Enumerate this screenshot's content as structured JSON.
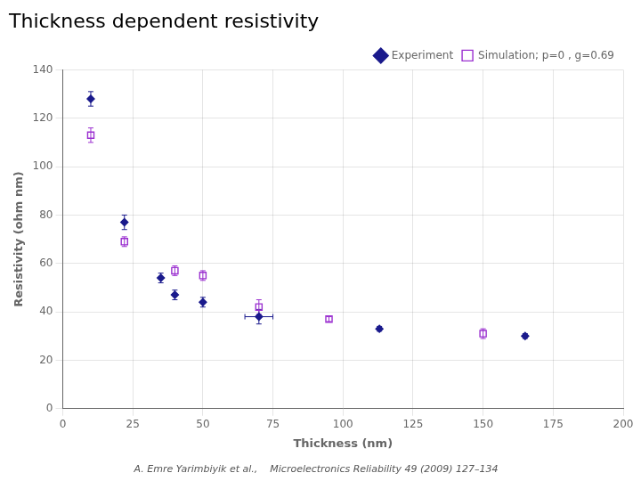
{
  "chart_data": {
    "type": "scatter",
    "title": "Thickness dependent resistivity",
    "x_label": "Thickness (nm)",
    "y_label": "Resistivity (ohm nm)",
    "xlim": [
      0,
      200
    ],
    "ylim": [
      0,
      140
    ],
    "xticks": [
      0,
      25,
      50,
      75,
      100,
      125,
      150,
      175,
      200
    ],
    "yticks": [
      0,
      20,
      40,
      60,
      80,
      100,
      120,
      140
    ],
    "grid": true,
    "legend": "upper right",
    "annotations": [
      "A. Emre Yarimbiyik et al.,    Microelectronics Reliability 49 (2009) 127–134"
    ],
    "series": [
      {
        "name": "Experiment",
        "color": "#1a1a8c",
        "marker": "diamond",
        "x": [
          10,
          22,
          35,
          40,
          50,
          70,
          113,
          165
        ],
        "values": [
          128,
          77,
          54,
          47,
          44,
          38,
          33,
          30
        ],
        "xerr": [
          0,
          0,
          0,
          0,
          0,
          5,
          0,
          0
        ],
        "yerr": [
          3,
          3,
          2,
          2,
          2,
          3,
          1,
          1
        ]
      },
      {
        "name": "Simulation; p=0 , g=0.69",
        "color": "#9b30d0",
        "marker": "square-open",
        "x": [
          10,
          22,
          40,
          50,
          70,
          95,
          150
        ],
        "values": [
          113,
          69,
          57,
          55,
          42,
          37,
          31
        ],
        "yerr": [
          3,
          2,
          2,
          2,
          3,
          1,
          2
        ]
      }
    ]
  }
}
